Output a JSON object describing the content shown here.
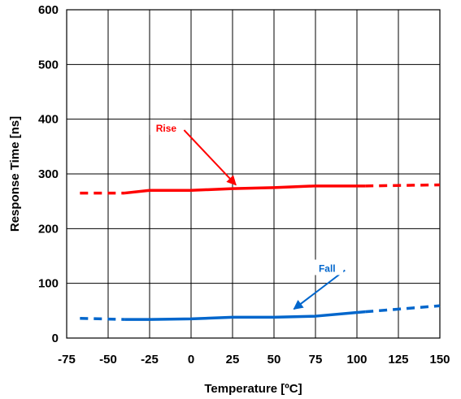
{
  "chart_data": {
    "type": "line",
    "title": "",
    "xlabel": "Temperature [ºC]",
    "ylabel": "Response Time [ns]",
    "xlim": [
      -75,
      150
    ],
    "ylim": [
      0,
      600
    ],
    "x_ticks": [
      -75,
      -50,
      -25,
      0,
      25,
      50,
      75,
      100,
      125,
      150
    ],
    "y_ticks": [
      0,
      100,
      200,
      300,
      400,
      500,
      600
    ],
    "x_tick_labels": [
      "-75",
      "-50",
      "-25",
      "0",
      "25",
      "50",
      "75",
      "100",
      "125",
      "150"
    ],
    "y_tick_labels": [
      "0",
      "100",
      "200",
      "300",
      "400",
      "500",
      "600"
    ],
    "grid": true,
    "legend": "none",
    "series": [
      {
        "key": "rise",
        "color": "#ff0000",
        "measured": {
          "x": [
            -40,
            -25,
            0,
            25,
            50,
            75,
            105
          ],
          "y": [
            265,
            270,
            270,
            273,
            275,
            278,
            278
          ]
        },
        "extrapolated": {
          "x": [
            -67,
            -40,
            105,
            150
          ],
          "y": [
            265,
            265,
            278,
            280
          ]
        }
      },
      {
        "key": "fall",
        "color": "#0066cc",
        "measured": {
          "x": [
            -40,
            -25,
            0,
            25,
            50,
            75,
            105
          ],
          "y": [
            34,
            34,
            35,
            38,
            38,
            40,
            48
          ]
        },
        "extrapolated": {
          "x": [
            -67,
            -40,
            105,
            150
          ],
          "y": [
            36,
            34,
            48,
            59
          ]
        }
      }
    ],
    "annotations": [
      {
        "key": "rise",
        "text": "Rise",
        "color": "#ff0000",
        "label_at": [
          -15,
          383
        ],
        "point_to": [
          27,
          280
        ]
      },
      {
        "key": "fall",
        "text": "Fall",
        "color": "#0066cc",
        "label_at": [
          82,
          127
        ],
        "point_to": [
          62,
          53
        ]
      }
    ]
  }
}
